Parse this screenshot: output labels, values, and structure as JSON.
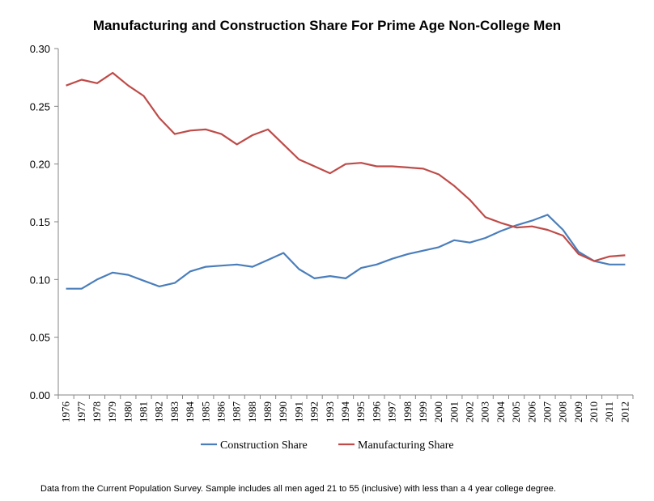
{
  "chart_data": {
    "type": "line",
    "title": "Manufacturing and Construction Share For Prime Age Non-College Men",
    "xlabel": "",
    "ylabel": "",
    "ylim": [
      0,
      0.3
    ],
    "yticks": [
      "0.00",
      "0.05",
      "0.10",
      "0.15",
      "0.20",
      "0.25",
      "0.30"
    ],
    "grid": false,
    "legend_position": "bottom",
    "categories": [
      "1976",
      "1977",
      "1978",
      "1979",
      "1980",
      "1981",
      "1982",
      "1983",
      "1984",
      "1985",
      "1986",
      "1987",
      "1988",
      "1989",
      "1990",
      "1991",
      "1992",
      "1993",
      "1994",
      "1995",
      "1996",
      "1997",
      "1998",
      "1999",
      "2000",
      "2001",
      "2002",
      "2003",
      "2004",
      "2005",
      "2006",
      "2007",
      "2008",
      "2009",
      "2010",
      "2011",
      "2012"
    ],
    "series": [
      {
        "name": "Construction Share",
        "color": "#4a7ebb",
        "values": [
          0.092,
          0.092,
          0.1,
          0.106,
          0.104,
          0.099,
          0.094,
          0.097,
          0.107,
          0.111,
          0.112,
          0.113,
          0.111,
          0.117,
          0.123,
          0.109,
          0.101,
          0.103,
          0.101,
          0.11,
          0.113,
          0.118,
          0.122,
          0.125,
          0.128,
          0.134,
          0.132,
          0.136,
          0.142,
          0.147,
          0.151,
          0.156,
          0.143,
          0.124,
          0.116,
          0.113,
          0.113
        ]
      },
      {
        "name": "Manufacturing Share",
        "color": "#be4b48",
        "values": [
          0.268,
          0.273,
          0.27,
          0.279,
          0.268,
          0.259,
          0.24,
          0.226,
          0.229,
          0.23,
          0.226,
          0.217,
          0.225,
          0.23,
          0.217,
          0.204,
          0.198,
          0.192,
          0.2,
          0.201,
          0.198,
          0.198,
          0.197,
          0.196,
          0.191,
          0.181,
          0.169,
          0.154,
          0.149,
          0.145,
          0.146,
          0.143,
          0.138,
          0.122,
          0.116,
          0.12,
          0.121
        ]
      }
    ],
    "footnote": "Data from the Current Population Survey.  Sample includes all men aged 21 to 55 (inclusive) with less than a 4 year college degree."
  }
}
